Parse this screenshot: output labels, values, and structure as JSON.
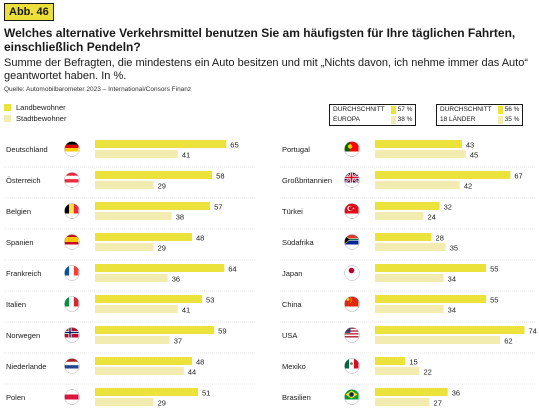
{
  "badge": "Abb. 46",
  "title": "Welches alternative Verkehrsmittel benutzen Sie am häufigsten für Ihre täglichen Fahrten, einschließlich Pendeln?",
  "subtitle": "Summe der Befragten, die mindestens ein Auto besitzen und mit „Nichts davon, ich nehme immer das Auto“ geantwortet haben. In %.",
  "source": "Quelle: Automobilbarometer 2023 – International/Consors Finanz",
  "colors": {
    "land": "#ece23c",
    "stadt": "#f3ecb0",
    "text": "#1a1a1a"
  },
  "legend": [
    {
      "label": "Landbewohner",
      "color": "#ece23c"
    },
    {
      "label": "Stadtbewohner",
      "color": "#f3ecb0"
    }
  ],
  "averages": [
    {
      "label_line1": "DURCHSCHNITT",
      "label_line2": "EUROPA",
      "land": "57 %",
      "stadt": "38 %"
    },
    {
      "label_line1": "DURCHSCHNITT",
      "label_line2": "18 LÄNDER",
      "land": "56 %",
      "stadt": "35 %"
    }
  ],
  "chart_data": {
    "type": "bar",
    "title": "Welches alternative Verkehrsmittel benutzen Sie am häufigsten für Ihre täglichen Fahrten, einschließlich Pendeln?",
    "unit": "%",
    "ylim": [
      0,
      100
    ],
    "legend_position": "top-left",
    "grid": false,
    "series": [
      {
        "name": "Landbewohner",
        "color": "#ece23c"
      },
      {
        "name": "Stadtbewohner",
        "color": "#f3ecb0"
      }
    ],
    "panels": [
      {
        "categories": [
          "Deutschland",
          "Österreich",
          "Belgien",
          "Spanien",
          "Frankreich",
          "Italien",
          "Norwegen",
          "Niederlande",
          "Polen"
        ],
        "flags": [
          "flag-germany",
          "flag-austria",
          "flag-belgium",
          "flag-spain",
          "flag-france",
          "flag-italy",
          "flag-norway",
          "flag-netherlands",
          "flag-poland"
        ],
        "land": [
          65,
          58,
          57,
          48,
          64,
          53,
          59,
          48,
          51
        ],
        "stadt": [
          41,
          29,
          38,
          29,
          36,
          41,
          37,
          44,
          29
        ]
      },
      {
        "categories": [
          "Portugal",
          "Großbritannien",
          "Türkei",
          "Südafrika",
          "Japan",
          "China",
          "USA",
          "Mexiko",
          "Brasilien"
        ],
        "flags": [
          "flag-portugal",
          "flag-uk",
          "flag-turkey",
          "flag-south-africa",
          "flag-japan",
          "flag-china",
          "flag-usa",
          "flag-mexico",
          "flag-brazil"
        ],
        "land": [
          43,
          67,
          32,
          28,
          55,
          55,
          74,
          15,
          36
        ],
        "stadt": [
          45,
          42,
          24,
          35,
          34,
          34,
          62,
          22,
          27
        ]
      }
    ]
  }
}
